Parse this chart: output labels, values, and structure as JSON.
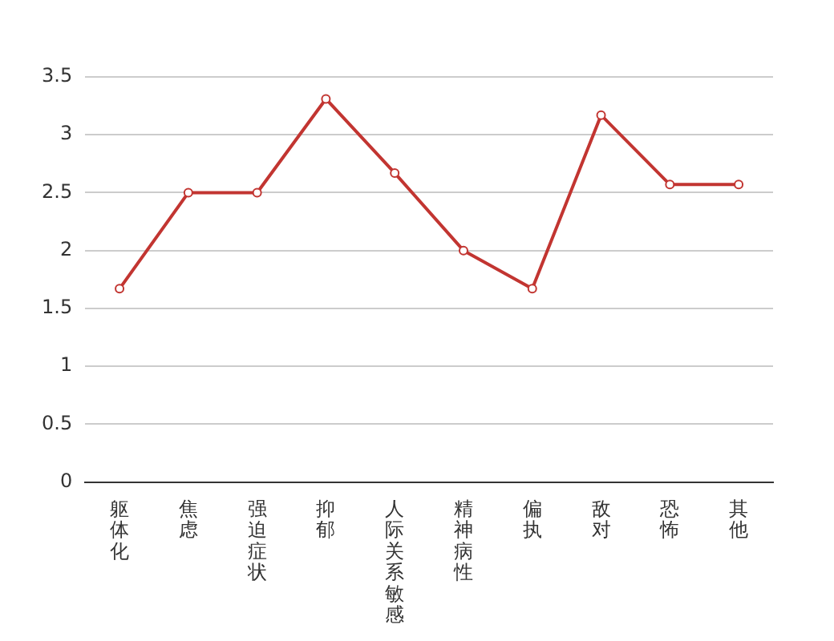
{
  "chart_data": {
    "type": "line",
    "categories": [
      "躯体化",
      "焦虑",
      "强迫症状",
      "抑郁",
      "人际关系敏感",
      "精神病性",
      "偏执",
      "敌对",
      "恐怖",
      "其他"
    ],
    "series": [
      {
        "color": "#c23531",
        "values": [
          1.67,
          2.5,
          2.5,
          3.31,
          2.67,
          2.0,
          1.67,
          3.17,
          2.57,
          2.57
        ]
      }
    ],
    "ylim": [
      0,
      3.5
    ],
    "yticks": [
      0,
      0.5,
      1,
      1.5,
      2,
      2.5,
      3,
      3.5
    ],
    "grid": "y",
    "legend": false,
    "marker": "circle",
    "line_style": "solid"
  }
}
